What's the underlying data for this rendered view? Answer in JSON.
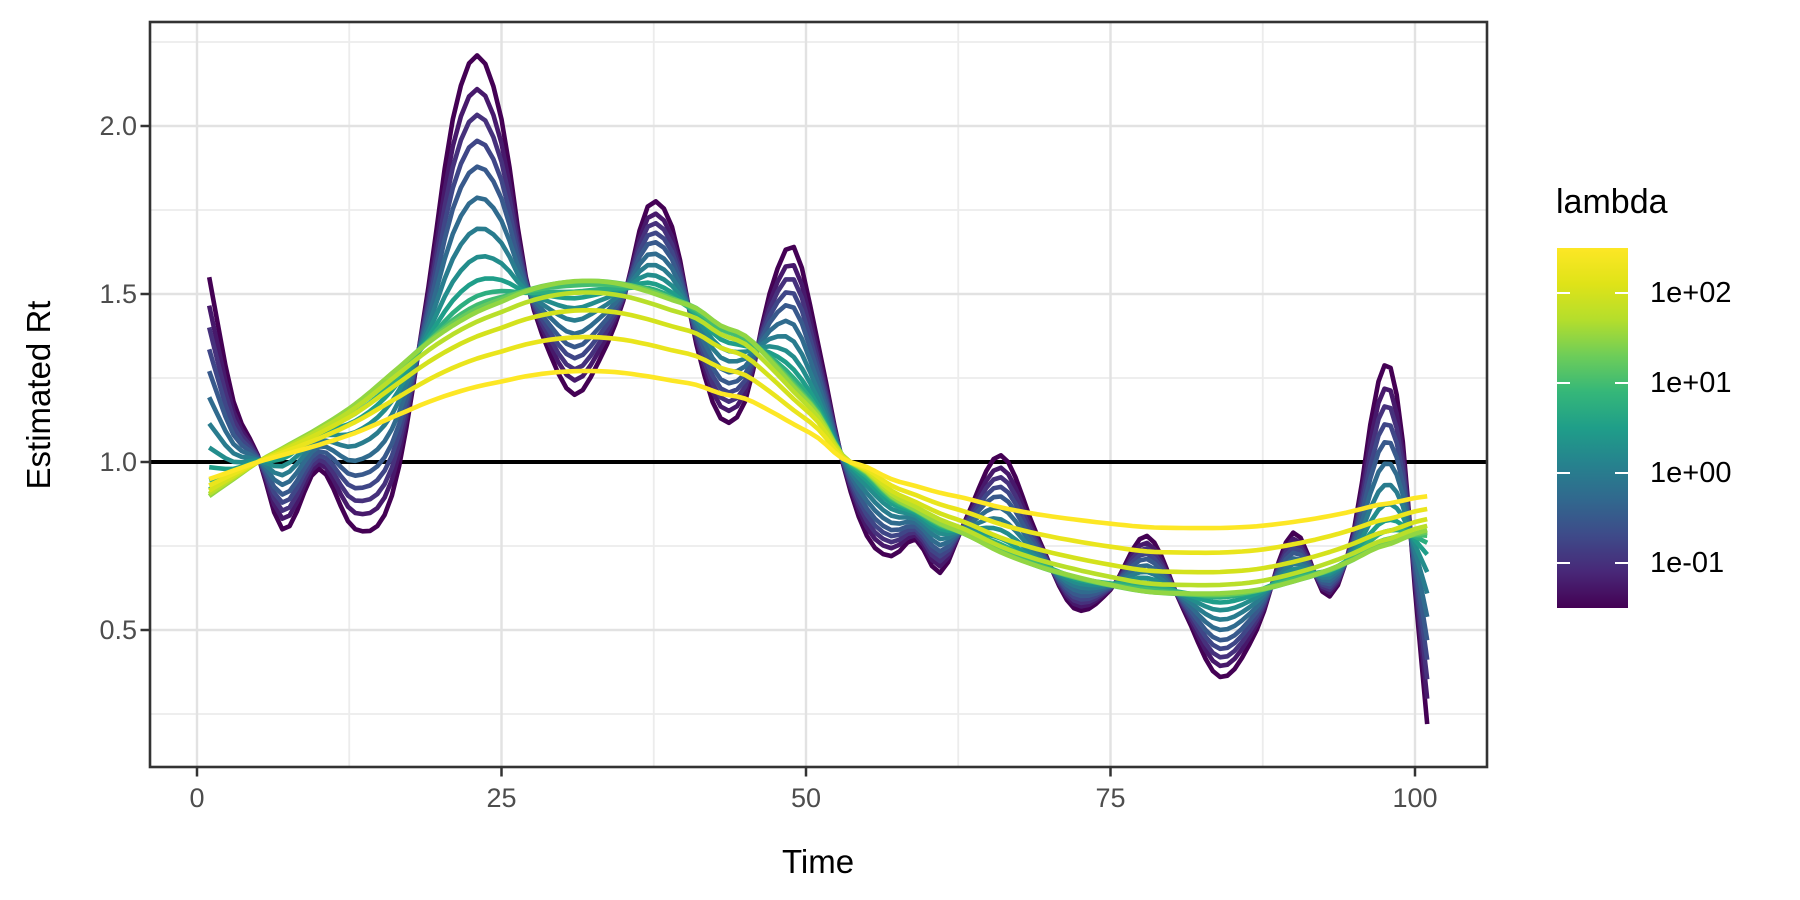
{
  "axes": {
    "x": {
      "title": "Time",
      "tick_values": [
        0,
        25,
        50,
        75,
        100
      ],
      "tick_labels": [
        "0",
        "25",
        "50",
        "75",
        "100"
      ],
      "minor_tick_values": [
        12.5,
        37.5,
        62.5,
        87.5
      ],
      "range": [
        -3.9,
        105.9
      ]
    },
    "y": {
      "title": "Estimated Rt",
      "tick_values": [
        0.5,
        1.0,
        1.5,
        2.0
      ],
      "tick_labels": [
        "0.5",
        "1.0",
        "1.5",
        "2.0"
      ],
      "minor_tick_values": [
        0.25,
        0.75,
        1.25,
        1.75,
        2.25
      ],
      "range": [
        0.09,
        2.33
      ]
    }
  },
  "legend": {
    "title": "lambda",
    "bar_exp_range": [
      -1.5,
      2.5
    ],
    "entries": [
      {
        "label": "1e+02",
        "exp": 2
      },
      {
        "label": "1e+01",
        "exp": 1
      },
      {
        "label": "1e+00",
        "exp": 0
      },
      {
        "label": "1e-01",
        "exp": -1
      }
    ]
  },
  "style": {
    "background": "#FFFFFF",
    "grid_major": "#E2E2E2",
    "grid_minor": "#ECECEC",
    "panel_border": "#333333",
    "tick_color": "#333333",
    "tick_label_color": "#4D4D4D",
    "hline_color": "#000000",
    "viridis": [
      "#440154",
      "#482878",
      "#3E4A89",
      "#31688E",
      "#26828E",
      "#1F9E89",
      "#35B779",
      "#6DCD59",
      "#B4DE2C",
      "#DFE318",
      "#FDE725"
    ]
  },
  "chart_data": {
    "type": "line",
    "title": "",
    "xlabel": "Time",
    "ylabel": "Estimated Rt",
    "xlim": [
      -3.9,
      105.9
    ],
    "ylim": [
      0.09,
      2.33
    ],
    "grid": true,
    "legend_position": "right",
    "color_scale": "viridis, log10(lambda) from -1.5 (dark purple) to 2.5 (yellow)",
    "reference_line_y": 1.0,
    "x_anchors": [
      1,
      3,
      5,
      7,
      10,
      13,
      16,
      19,
      21,
      23,
      25,
      27,
      29,
      31,
      33,
      35,
      37,
      39,
      41,
      43,
      45,
      47,
      49,
      51,
      53,
      55,
      57,
      59,
      61,
      63,
      66,
      69,
      72,
      75,
      78,
      81,
      84,
      87,
      90,
      93,
      95,
      97,
      98,
      99,
      100,
      101
    ],
    "curve_lambda_min": [
      1.55,
      1.18,
      1.02,
      0.8,
      0.98,
      0.8,
      0.9,
      1.52,
      2.02,
      2.21,
      2.02,
      1.55,
      1.32,
      1.2,
      1.3,
      1.48,
      1.76,
      1.7,
      1.35,
      1.13,
      1.18,
      1.5,
      1.64,
      1.35,
      1.0,
      0.78,
      0.72,
      0.77,
      0.67,
      0.82,
      1.02,
      0.78,
      0.565,
      0.62,
      0.78,
      0.56,
      0.36,
      0.5,
      0.79,
      0.6,
      0.8,
      1.24,
      1.28,
      1.06,
      0.62,
      0.22
    ],
    "curve_smooth_mid": [
      0.9,
      0.95,
      1.0,
      1.04,
      1.1,
      1.17,
      1.26,
      1.35,
      1.4,
      1.44,
      1.47,
      1.5,
      1.52,
      1.53,
      1.53,
      1.52,
      1.5,
      1.475,
      1.45,
      1.4,
      1.37,
      1.3,
      1.22,
      1.14,
      1.02,
      0.97,
      0.9,
      0.86,
      0.82,
      0.79,
      0.735,
      0.695,
      0.665,
      0.64,
      0.62,
      0.615,
      0.615,
      0.625,
      0.65,
      0.685,
      0.715,
      0.75,
      0.76,
      0.775,
      0.79,
      0.8
    ],
    "model": "series y(t) = 1 + amp*(curve_smooth_mid(t)-1) + wiggle*(curve_lambda_min(t)-curve_smooth_mid(t)); color = viridis((lambda_exp+1.5)/4)",
    "series": [
      {
        "lambda_exp": -1.5,
        "wiggle": 1.0,
        "amp": 1.0
      },
      {
        "lambda_exp": -1.25,
        "wiggle": 0.87,
        "amp": 1.0
      },
      {
        "lambda_exp": -1.0,
        "wiggle": 0.77,
        "amp": 1.0
      },
      {
        "lambda_exp": -0.75,
        "wiggle": 0.67,
        "amp": 1.0
      },
      {
        "lambda_exp": -0.5,
        "wiggle": 0.57,
        "amp": 1.0
      },
      {
        "lambda_exp": -0.25,
        "wiggle": 0.45,
        "amp": 1.0
      },
      {
        "lambda_exp": 0.0,
        "wiggle": 0.33,
        "amp": 1.0
      },
      {
        "lambda_exp": 0.25,
        "wiggle": 0.22,
        "amp": 1.0
      },
      {
        "lambda_exp": 0.5,
        "wiggle": 0.13,
        "amp": 1.0
      },
      {
        "lambda_exp": 0.75,
        "wiggle": 0.07,
        "amp": 1.0
      },
      {
        "lambda_exp": 1.0,
        "wiggle": 0.03,
        "amp": 1.01
      },
      {
        "lambda_exp": 1.25,
        "wiggle": 0.01,
        "amp": 1.02
      },
      {
        "lambda_exp": 1.5,
        "wiggle": 0.0,
        "amp": 1.015
      },
      {
        "lambda_exp": 1.75,
        "wiggle": 0.0,
        "amp": 0.95
      },
      {
        "lambda_exp": 2.0,
        "wiggle": 0.0,
        "amp": 0.85
      },
      {
        "lambda_exp": 2.25,
        "wiggle": 0.0,
        "amp": 0.7
      },
      {
        "lambda_exp": 2.5,
        "wiggle": 0.0,
        "amp": 0.51
      }
    ]
  }
}
